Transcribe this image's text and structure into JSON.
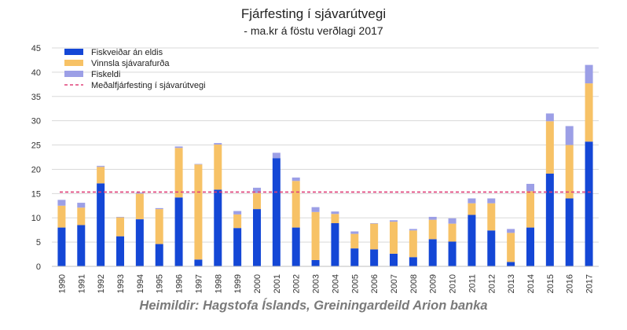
{
  "chart_data": {
    "type": "bar",
    "stacked": true,
    "title": "Fjárfesting í sjávarútvegi",
    "subtitle": "- ma.kr á föstu verðlagi 2017",
    "source": "Heimildir: Hagstofa Íslands, Greiningardeild Arion banka",
    "categories": [
      "1990",
      "1991",
      "1992",
      "1993",
      "1994",
      "1995",
      "1996",
      "1997",
      "1998",
      "1999",
      "2000",
      "2001",
      "2002",
      "2003",
      "2004",
      "2005",
      "2006",
      "2007",
      "2008",
      "2009",
      "2010",
      "2011",
      "2012",
      "2013",
      "2014",
      "2015",
      "2016",
      "2017"
    ],
    "series": [
      {
        "name": "Fiskveiðar án eldis",
        "color": "#1447d6",
        "values": [
          8.0,
          8.5,
          17.1,
          6.2,
          9.7,
          4.6,
          14.2,
          1.4,
          15.8,
          7.9,
          11.8,
          22.3,
          8.0,
          1.3,
          8.9,
          3.7,
          3.5,
          2.6,
          1.9,
          5.6,
          5.1,
          10.6,
          7.4,
          0.9,
          8.0,
          19.1,
          14.0,
          25.7
        ]
      },
      {
        "name": "Vinnsla sjávarafurða",
        "color": "#f7c266",
        "values": [
          4.5,
          3.6,
          3.4,
          3.9,
          5.3,
          7.2,
          10.2,
          19.6,
          9.3,
          2.8,
          3.3,
          0.0,
          9.6,
          9.9,
          1.9,
          3.0,
          5.3,
          6.6,
          5.5,
          4.0,
          3.7,
          2.4,
          5.6,
          6.0,
          7.5,
          10.8,
          11.0,
          12.0
        ]
      },
      {
        "name": "Fiskeldi",
        "color": "#9c9fe6",
        "values": [
          1.2,
          1.0,
          0.2,
          0.1,
          0.2,
          0.2,
          0.3,
          0.1,
          0.3,
          0.7,
          1.1,
          1.1,
          0.7,
          1.0,
          0.5,
          0.5,
          0.1,
          0.3,
          0.3,
          0.6,
          1.1,
          1.0,
          1.0,
          0.8,
          1.5,
          1.6,
          3.9,
          3.8
        ]
      }
    ],
    "average_line": {
      "name": "Meðalfjárfesting í sjávarútvegi",
      "value": 15.3,
      "color": "#e0407a"
    },
    "ylim": [
      0,
      45
    ],
    "yticks": [
      "0",
      "5",
      "10",
      "15",
      "20",
      "25",
      "30",
      "35",
      "40",
      "45"
    ],
    "grid": true,
    "legend": "top-left"
  }
}
